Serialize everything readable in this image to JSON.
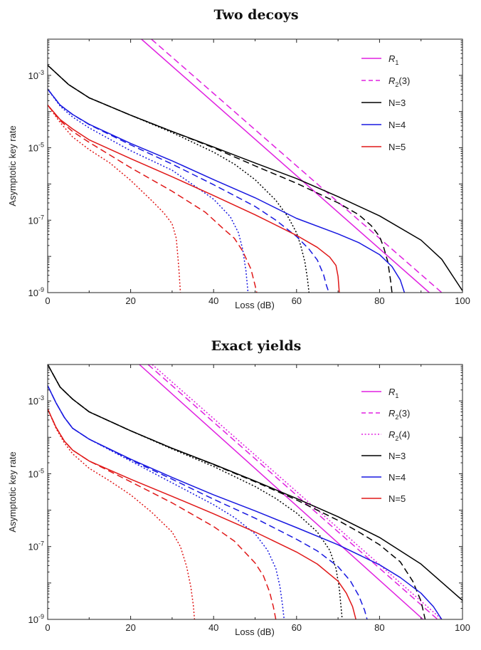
{
  "chart_data": [
    {
      "type": "line",
      "title": "Two decoys",
      "xlabel": "Loss (dB)",
      "ylabel": "Asymptotic key rate",
      "xlim": [
        0,
        100
      ],
      "ylim_log10": [
        -9,
        -2
      ],
      "y_scale": "log",
      "x_ticks": [
        "0",
        "20",
        "40",
        "60",
        "80",
        "100"
      ],
      "y_ticks": [
        {
          "base": "10",
          "exp": "-3",
          "value": -3
        },
        {
          "base": "10",
          "exp": "-5",
          "value": -5
        },
        {
          "base": "10",
          "exp": "-7",
          "value": -7
        },
        {
          "base": "10",
          "exp": "-9",
          "value": -9
        }
      ],
      "legend_position": "top-right",
      "legend": [
        {
          "main": "R",
          "sub": "1",
          "suffix": "",
          "color": "#e020e0",
          "dash": "solid"
        },
        {
          "main": "R",
          "sub": "2",
          "suffix": "(3)",
          "color": "#e020e0",
          "dash": "dashed"
        },
        {
          "main": "N=3",
          "sub": "",
          "suffix": "",
          "color": "#000000",
          "dash": "solid"
        },
        {
          "main": "N=4",
          "sub": "",
          "suffix": "",
          "color": "#1818e0",
          "dash": "solid"
        },
        {
          "main": "N=5",
          "sub": "",
          "suffix": "",
          "color": "#e01818",
          "dash": "solid"
        }
      ],
      "series": [
        {
          "color": "#e020e0",
          "dash": "solid",
          "x": [
            22.6,
            92
          ],
          "log10_y": [
            -2,
            -9
          ]
        },
        {
          "color": "#e020e0",
          "dash": "dashed",
          "x": [
            25,
            95
          ],
          "log10_y": [
            -2,
            -9
          ]
        },
        {
          "name": "N=3",
          "color": "#000000",
          "dash": "solid",
          "x": [
            0,
            5,
            10,
            20,
            30,
            40,
            50,
            60,
            70,
            80,
            90,
            95,
            100
          ],
          "log10_y": [
            -2.72,
            -3.25,
            -3.62,
            -4.1,
            -4.55,
            -4.98,
            -5.42,
            -5.85,
            -6.35,
            -6.88,
            -7.55,
            -8.08,
            -8.95
          ]
        },
        {
          "color": "#000000",
          "dash": "dashed",
          "x": [
            0,
            5,
            10,
            20,
            30,
            40,
            50,
            60,
            70,
            75,
            78,
            80,
            81,
            82,
            82.7,
            83
          ],
          "log10_y": [
            -2.72,
            -3.25,
            -3.62,
            -4.1,
            -4.55,
            -5.0,
            -5.5,
            -5.98,
            -6.52,
            -6.85,
            -7.15,
            -7.45,
            -7.75,
            -8.15,
            -8.7,
            -9
          ]
        },
        {
          "color": "#000000",
          "dash": "dotted",
          "x": [
            0,
            5,
            10,
            20,
            30,
            40,
            45,
            50,
            55,
            58,
            60,
            61,
            62,
            62.6,
            63
          ],
          "log10_y": [
            -2.72,
            -3.25,
            -3.62,
            -4.1,
            -4.58,
            -5.12,
            -5.45,
            -5.88,
            -6.45,
            -6.92,
            -7.35,
            -7.7,
            -8.15,
            -8.6,
            -9
          ]
        },
        {
          "name": "N=4",
          "color": "#1818e0",
          "dash": "solid",
          "x": [
            0,
            3,
            6,
            10,
            20,
            30,
            40,
            50,
            60,
            70,
            75,
            80,
            83,
            85,
            86
          ],
          "log10_y": [
            -3.38,
            -3.82,
            -4.08,
            -4.35,
            -4.88,
            -5.36,
            -5.88,
            -6.38,
            -6.95,
            -7.38,
            -7.62,
            -7.95,
            -8.28,
            -8.65,
            -9
          ]
        },
        {
          "color": "#1818e0",
          "dash": "dashed",
          "x": [
            0,
            3,
            6,
            10,
            20,
            30,
            40,
            50,
            55,
            60,
            63,
            65,
            66.5,
            67.2,
            67.8
          ],
          "log10_y": [
            -3.38,
            -3.82,
            -4.08,
            -4.36,
            -4.92,
            -5.45,
            -6.02,
            -6.62,
            -7.0,
            -7.45,
            -7.8,
            -8.1,
            -8.5,
            -8.8,
            -9
          ]
        },
        {
          "color": "#1818e0",
          "dash": "dotted",
          "x": [
            0,
            3,
            6,
            10,
            20,
            30,
            40,
            44,
            46,
            47,
            47.8,
            48.3
          ],
          "log10_y": [
            -3.38,
            -3.85,
            -4.15,
            -4.45,
            -5.08,
            -5.62,
            -6.42,
            -6.9,
            -7.35,
            -7.8,
            -8.4,
            -9
          ]
        },
        {
          "name": "N=5",
          "color": "#e01818",
          "dash": "solid",
          "x": [
            0,
            3,
            6,
            10,
            20,
            30,
            40,
            50,
            60,
            65,
            68,
            69.5,
            70,
            70.3
          ],
          "log10_y": [
            -3.82,
            -4.22,
            -4.48,
            -4.78,
            -5.3,
            -5.8,
            -6.32,
            -6.85,
            -7.42,
            -7.75,
            -8.02,
            -8.25,
            -8.55,
            -9
          ]
        },
        {
          "color": "#e01818",
          "dash": "dashed",
          "x": [
            0,
            3,
            6,
            10,
            20,
            30,
            38,
            42,
            45,
            47,
            49,
            50,
            50.4
          ],
          "log10_y": [
            -3.82,
            -4.25,
            -4.55,
            -4.85,
            -5.55,
            -6.2,
            -6.78,
            -7.2,
            -7.5,
            -7.85,
            -8.35,
            -8.8,
            -9
          ]
        },
        {
          "color": "#e01818",
          "dash": "dotted",
          "x": [
            0,
            3,
            6,
            10,
            15,
            20,
            25,
            28,
            30,
            31,
            31.6,
            32
          ],
          "log10_y": [
            -3.82,
            -4.3,
            -4.7,
            -5.05,
            -5.42,
            -5.9,
            -6.45,
            -6.8,
            -7.1,
            -7.5,
            -8.3,
            -9
          ]
        }
      ]
    },
    {
      "type": "line",
      "title": "Exact yields",
      "xlabel": "Loss (dB)",
      "ylabel": "Asymptotic key rate",
      "xlim": [
        0,
        100
      ],
      "ylim_log10": [
        -9,
        -2
      ],
      "y_scale": "log",
      "x_ticks": [
        "0",
        "20",
        "40",
        "60",
        "80",
        "100"
      ],
      "y_ticks": [
        {
          "base": "10",
          "exp": "-3",
          "value": -3
        },
        {
          "base": "10",
          "exp": "-5",
          "value": -5
        },
        {
          "base": "10",
          "exp": "-7",
          "value": -7
        },
        {
          "base": "10",
          "exp": "-9",
          "value": -9
        }
      ],
      "legend_position": "top-right",
      "legend": [
        {
          "main": "R",
          "sub": "1",
          "suffix": "",
          "color": "#e020e0",
          "dash": "solid"
        },
        {
          "main": "R",
          "sub": "2",
          "suffix": "(3)",
          "color": "#e020e0",
          "dash": "dashed"
        },
        {
          "main": "R",
          "sub": "2",
          "suffix": "(4)",
          "color": "#e020e0",
          "dash": "dotted"
        },
        {
          "main": "N=3",
          "sub": "",
          "suffix": "",
          "color": "#000000",
          "dash": "solid"
        },
        {
          "main": "N=4",
          "sub": "",
          "suffix": "",
          "color": "#1818e0",
          "dash": "solid"
        },
        {
          "main": "N=5",
          "sub": "",
          "suffix": "",
          "color": "#e01818",
          "dash": "solid"
        }
      ],
      "series": [
        {
          "color": "#e020e0",
          "dash": "solid",
          "x": [
            22.1,
            90.5
          ],
          "log10_y": [
            -2,
            -9
          ]
        },
        {
          "color": "#e020e0",
          "dash": "dashed",
          "x": [
            24.2,
            94
          ],
          "log10_y": [
            -2,
            -9
          ]
        },
        {
          "color": "#e020e0",
          "dash": "dotted",
          "x": [
            25.2,
            95
          ],
          "log10_y": [
            -2,
            -9
          ]
        },
        {
          "name": "N=3",
          "color": "#000000",
          "dash": "solid",
          "x": [
            0,
            3,
            6,
            10,
            20,
            30,
            40,
            50,
            60,
            70,
            80,
            90,
            100
          ],
          "log10_y": [
            -2,
            -2.62,
            -2.95,
            -3.3,
            -3.82,
            -4.3,
            -4.74,
            -5.2,
            -5.68,
            -6.18,
            -6.75,
            -7.48,
            -8.48
          ]
        },
        {
          "color": "#000000",
          "dash": "dashed",
          "x": [
            0,
            3,
            6,
            10,
            20,
            30,
            40,
            50,
            60,
            70,
            75,
            80,
            85,
            88,
            90,
            91
          ],
          "log10_y": [
            -2,
            -2.62,
            -2.95,
            -3.3,
            -3.82,
            -4.3,
            -4.75,
            -5.22,
            -5.72,
            -6.28,
            -6.6,
            -6.95,
            -7.42,
            -7.95,
            -8.5,
            -9
          ]
        },
        {
          "color": "#000000",
          "dash": "dotted",
          "x": [
            0,
            3,
            6,
            10,
            20,
            30,
            40,
            50,
            55,
            60,
            65,
            68,
            69.5,
            70.3,
            71
          ],
          "log10_y": [
            -2,
            -2.62,
            -2.95,
            -3.3,
            -3.82,
            -4.32,
            -4.8,
            -5.35,
            -5.68,
            -6.08,
            -6.6,
            -7.1,
            -7.6,
            -8.15,
            -9
          ]
        },
        {
          "name": "N=4",
          "color": "#1818e0",
          "dash": "solid",
          "x": [
            0,
            2,
            4,
            6,
            10,
            20,
            30,
            40,
            50,
            60,
            70,
            80,
            85,
            90,
            93,
            95
          ],
          "log10_y": [
            -2.58,
            -3.05,
            -3.45,
            -3.75,
            -4.05,
            -4.6,
            -5.1,
            -5.58,
            -6.02,
            -6.48,
            -6.95,
            -7.5,
            -7.85,
            -8.28,
            -8.65,
            -9
          ]
        },
        {
          "color": "#1818e0",
          "dash": "dashed",
          "x": [
            0,
            2,
            4,
            6,
            10,
            20,
            30,
            40,
            50,
            60,
            65,
            70,
            73,
            75,
            76.4,
            77
          ],
          "log10_y": [
            -2.58,
            -3.05,
            -3.45,
            -3.75,
            -4.05,
            -4.62,
            -5.15,
            -5.7,
            -6.22,
            -6.8,
            -7.12,
            -7.55,
            -7.95,
            -8.35,
            -8.75,
            -9
          ]
        },
        {
          "color": "#1818e0",
          "dash": "dotted",
          "x": [
            0,
            2,
            4,
            6,
            10,
            20,
            30,
            40,
            45,
            50,
            53,
            55,
            56,
            56.6,
            57
          ],
          "log10_y": [
            -2.58,
            -3.05,
            -3.45,
            -3.75,
            -4.05,
            -4.65,
            -5.25,
            -5.85,
            -6.2,
            -6.65,
            -7.1,
            -7.6,
            -8.1,
            -8.6,
            -9
          ]
        },
        {
          "name": "N=5",
          "color": "#e01818",
          "dash": "solid",
          "x": [
            0,
            2,
            4,
            6,
            10,
            20,
            30,
            40,
            50,
            60,
            65,
            70,
            72,
            73.5,
            74.3
          ],
          "log10_y": [
            -3.22,
            -3.72,
            -4.1,
            -4.35,
            -4.65,
            -5.15,
            -5.62,
            -6.1,
            -6.6,
            -7.15,
            -7.48,
            -7.95,
            -8.28,
            -8.65,
            -9
          ]
        },
        {
          "color": "#e01818",
          "dash": "dashed",
          "x": [
            0,
            2,
            4,
            6,
            10,
            20,
            30,
            40,
            45,
            50,
            52,
            53.5,
            54.4,
            55
          ],
          "log10_y": [
            -3.22,
            -3.72,
            -4.1,
            -4.35,
            -4.65,
            -5.22,
            -5.8,
            -6.45,
            -6.85,
            -7.45,
            -7.8,
            -8.25,
            -8.65,
            -9
          ]
        },
        {
          "color": "#e01818",
          "dash": "dotted",
          "x": [
            0,
            2,
            4,
            6,
            10,
            15,
            20,
            25,
            30,
            32,
            33.5,
            34.5,
            35.1,
            35.4
          ],
          "log10_y": [
            -3.22,
            -3.75,
            -4.15,
            -4.45,
            -4.85,
            -5.2,
            -5.58,
            -6.05,
            -6.6,
            -7.0,
            -7.55,
            -8.1,
            -8.6,
            -9
          ]
        }
      ]
    }
  ]
}
